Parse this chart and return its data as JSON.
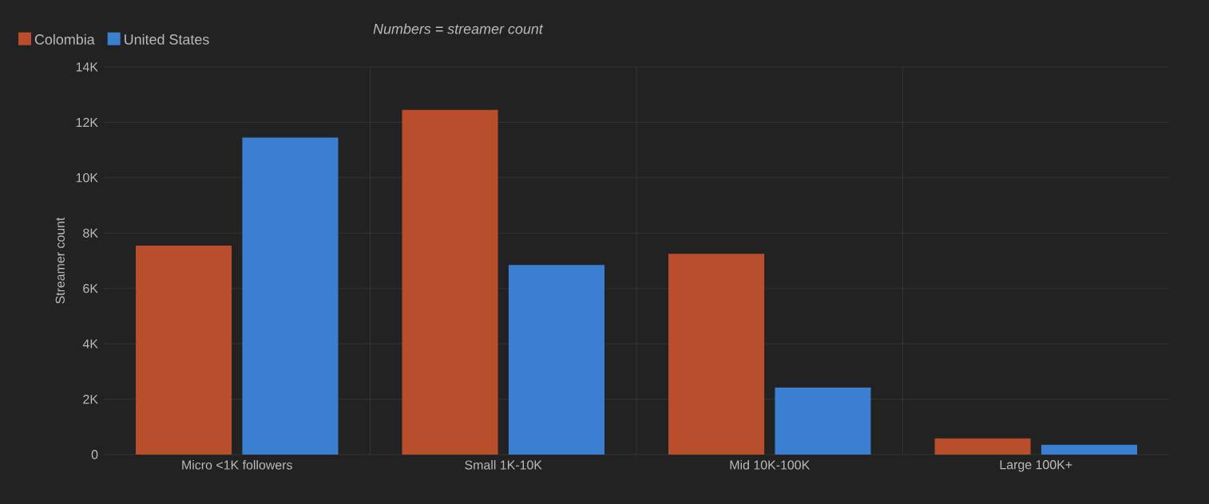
{
  "chart_data": {
    "type": "bar",
    "ylabel": "Streamer count",
    "categories": [
      "Micro <1K followers",
      "Small 1K-10K",
      "Mid 10K-100K",
      "Large 100K+"
    ],
    "series": [
      {
        "name": "Colombia",
        "color": "#b84e2c",
        "values": [
          7550,
          12450,
          7250,
          580
        ]
      },
      {
        "name": "United States",
        "color": "#3a7fd0",
        "values": [
          11450,
          6850,
          2420,
          350
        ]
      }
    ],
    "ylim": [
      0,
      14000
    ],
    "yticks": [
      {
        "value": 0,
        "label": "0"
      },
      {
        "value": 2000,
        "label": "2K"
      },
      {
        "value": 4000,
        "label": "4K"
      },
      {
        "value": 6000,
        "label": "6K"
      },
      {
        "value": 8000,
        "label": "8K"
      },
      {
        "value": 10000,
        "label": "10K"
      },
      {
        "value": 12000,
        "label": "12K"
      },
      {
        "value": 14000,
        "label": "14K"
      }
    ],
    "annotations": [
      "*Numbers = streamer count*"
    ],
    "grid": true,
    "legend": "top left"
  }
}
